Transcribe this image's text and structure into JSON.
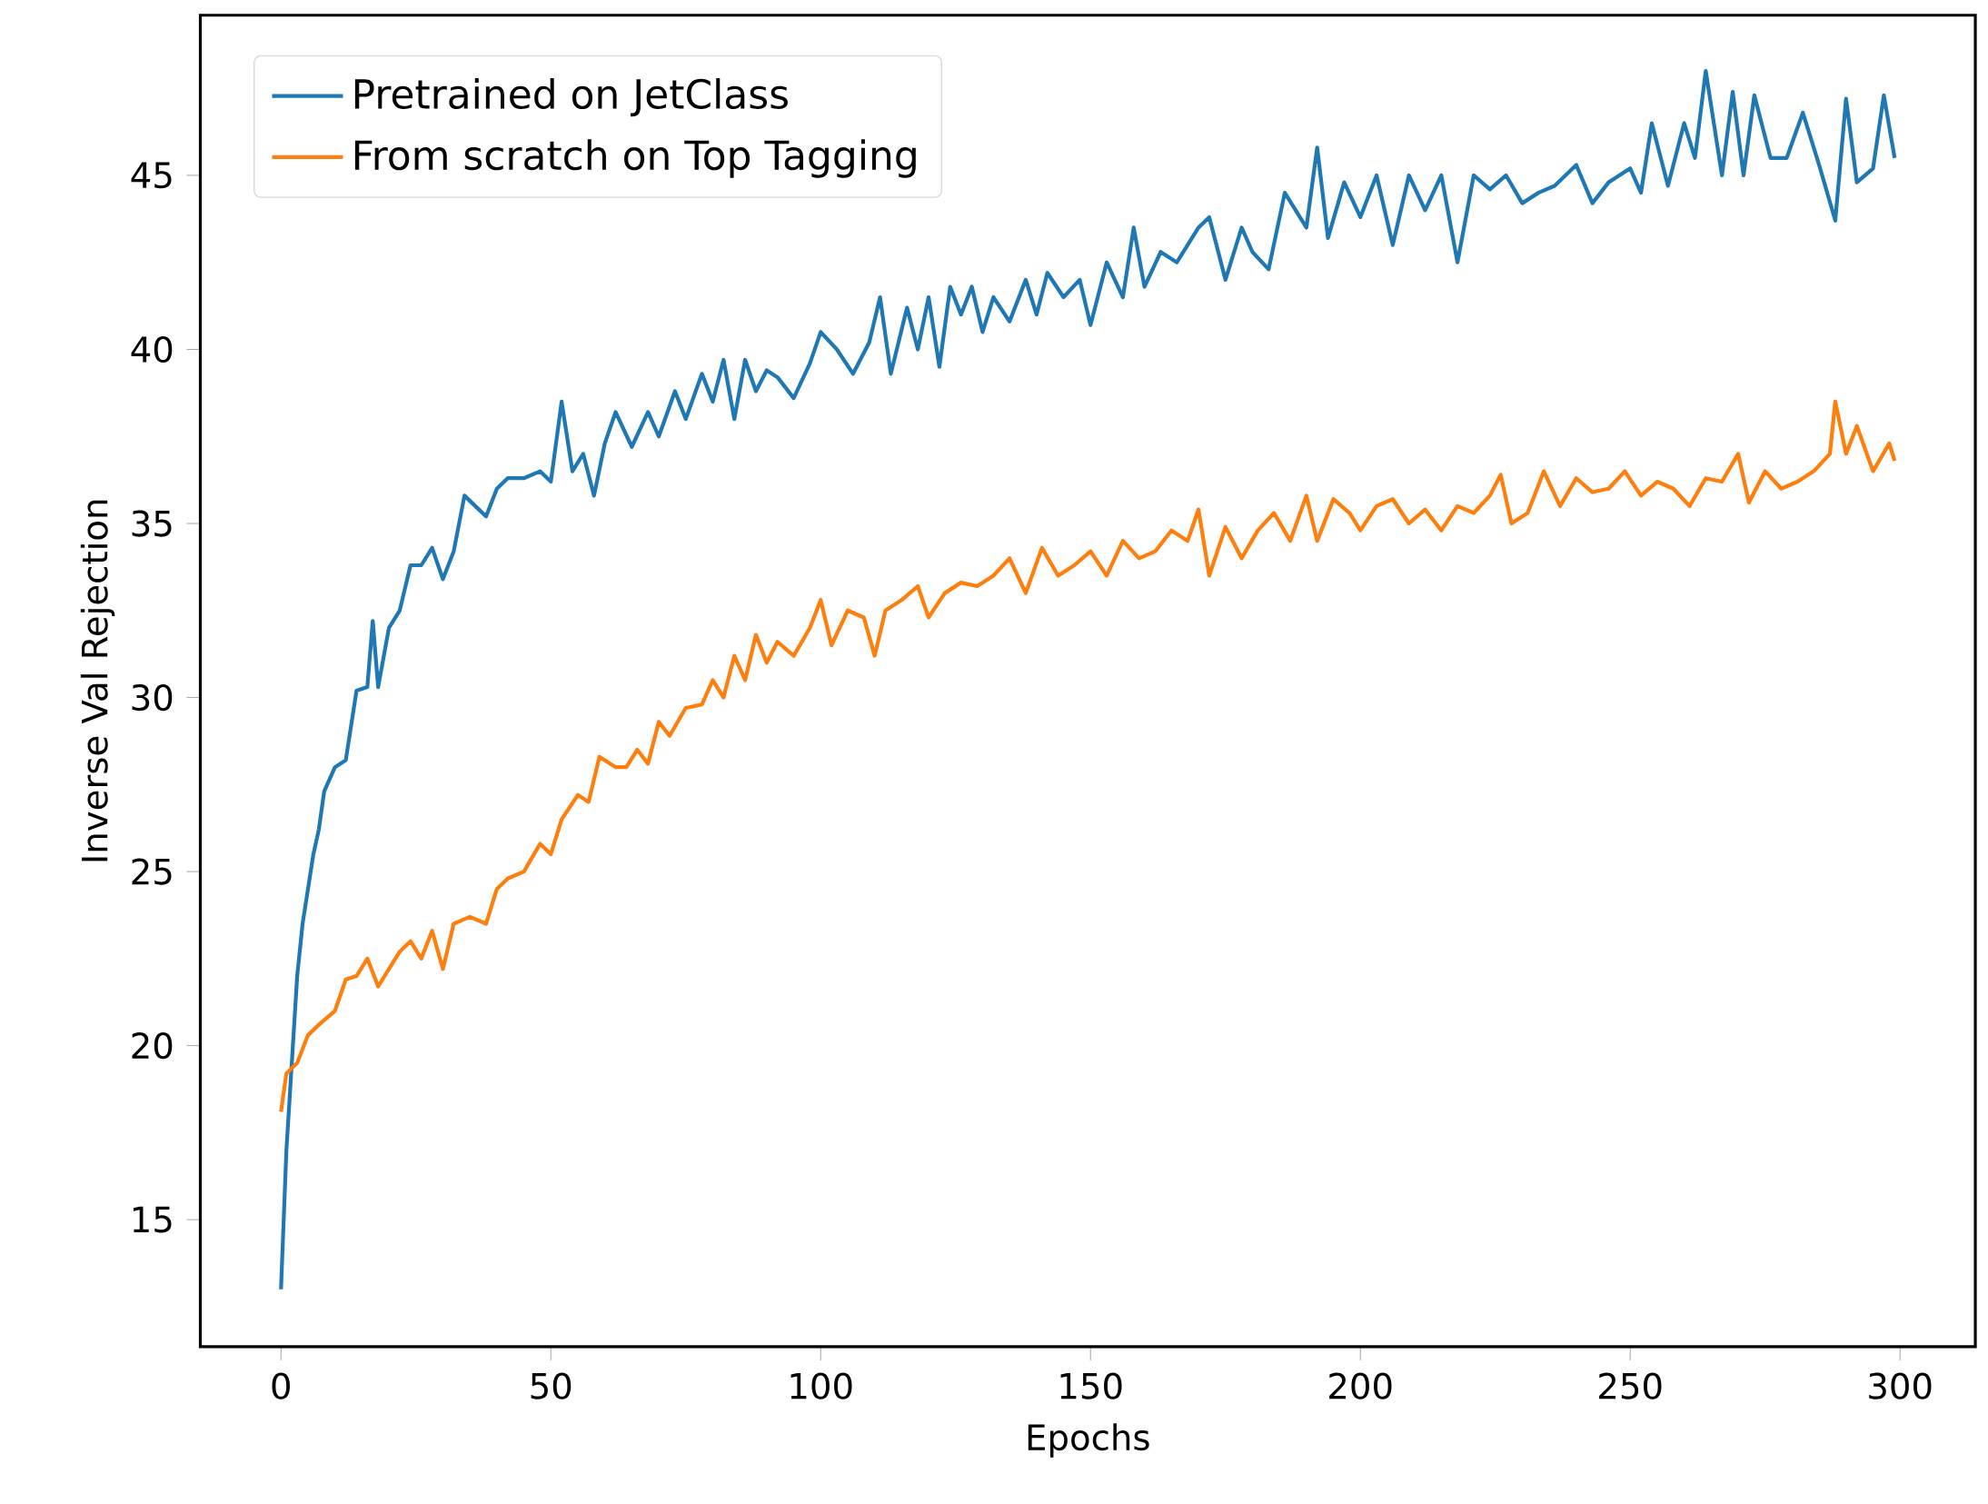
{
  "chart_data": {
    "type": "line",
    "xlabel": "Epochs",
    "ylabel": "Inverse Val Rejection",
    "xlim": [
      -14.95,
      313.95
    ],
    "ylim": [
      11.35,
      49.6
    ],
    "xticks": [
      0,
      50,
      100,
      150,
      200,
      250,
      300
    ],
    "yticks": [
      15,
      20,
      25,
      30,
      35,
      40,
      45
    ],
    "grid": false,
    "legend": "top left",
    "marker": "none",
    "line_style": "solid",
    "series": [
      {
        "name": "Pretrained on JetClass",
        "color": "#1f77b4",
        "x": [
          0,
          1,
          2,
          3,
          4,
          5,
          6,
          7,
          8,
          10,
          12,
          14,
          16,
          17,
          18,
          20,
          22,
          24,
          26,
          28,
          30,
          32,
          34,
          36,
          38,
          40,
          42,
          45,
          48,
          50,
          52,
          54,
          56,
          58,
          60,
          62,
          65,
          68,
          70,
          73,
          75,
          78,
          80,
          82,
          84,
          86,
          88,
          90,
          92,
          95,
          98,
          100,
          103,
          106,
          109,
          111,
          113,
          116,
          118,
          120,
          122,
          124,
          126,
          128,
          130,
          132,
          135,
          138,
          140,
          142,
          145,
          148,
          150,
          153,
          156,
          158,
          160,
          163,
          166,
          170,
          172,
          175,
          178,
          180,
          183,
          186,
          190,
          192,
          194,
          197,
          200,
          203,
          206,
          209,
          212,
          215,
          218,
          221,
          224,
          227,
          230,
          233,
          236,
          240,
          243,
          246,
          250,
          252,
          254,
          257,
          260,
          262,
          264,
          267,
          269,
          271,
          273,
          276,
          279,
          282,
          285,
          288,
          290,
          292,
          295,
          297,
          299
        ],
        "values": [
          13,
          17,
          19.5,
          22,
          23.5,
          24.5,
          25.5,
          26.2,
          27.3,
          28,
          28.2,
          30.2,
          30.3,
          32.2,
          30.3,
          32,
          32.5,
          33.8,
          33.8,
          34.3,
          33.4,
          34.2,
          35.8,
          35.5,
          35.2,
          36,
          36.3,
          36.3,
          36.5,
          36.2,
          38.5,
          36.5,
          37,
          35.8,
          37.3,
          38.2,
          37.2,
          38.2,
          37.5,
          38.8,
          38,
          39.3,
          38.5,
          39.7,
          38,
          39.7,
          38.8,
          39.4,
          39.2,
          38.6,
          39.6,
          40.5,
          40,
          39.3,
          40.2,
          41.5,
          39.3,
          41.2,
          40,
          41.5,
          39.5,
          41.8,
          41,
          41.8,
          40.5,
          41.5,
          40.8,
          42,
          41,
          42.2,
          41.5,
          42,
          40.7,
          42.5,
          41.5,
          43.5,
          41.8,
          42.8,
          42.5,
          43.5,
          43.8,
          42,
          43.5,
          42.8,
          42.3,
          44.5,
          43.5,
          45.8,
          43.2,
          44.8,
          43.8,
          45,
          43,
          45,
          44,
          45,
          42.5,
          45,
          44.6,
          45,
          44.2,
          44.5,
          44.7,
          45.3,
          44.2,
          44.8,
          45.2,
          44.5,
          46.5,
          44.7,
          46.5,
          45.5,
          48,
          45,
          47.4,
          45,
          47.3,
          45.5,
          45.5,
          46.8,
          45.3,
          43.7,
          47.2,
          44.8,
          45.2,
          47.3,
          45.5
        ]
      },
      {
        "name": "From scratch on Top Tagging",
        "color": "#ff7f0e",
        "x": [
          0,
          1,
          3,
          5,
          7,
          10,
          12,
          14,
          16,
          18,
          20,
          22,
          24,
          26,
          28,
          30,
          32,
          35,
          38,
          40,
          42,
          45,
          48,
          50,
          52,
          55,
          57,
          59,
          62,
          64,
          66,
          68,
          70,
          72,
          75,
          78,
          80,
          82,
          84,
          86,
          88,
          90,
          92,
          95,
          98,
          100,
          102,
          105,
          108,
          110,
          112,
          115,
          118,
          120,
          123,
          126,
          129,
          132,
          135,
          138,
          141,
          144,
          147,
          150,
          153,
          156,
          159,
          162,
          165,
          168,
          170,
          172,
          175,
          178,
          181,
          184,
          187,
          190,
          192,
          195,
          198,
          200,
          203,
          206,
          209,
          212,
          215,
          218,
          221,
          224,
          226,
          228,
          231,
          234,
          237,
          240,
          243,
          246,
          249,
          252,
          255,
          258,
          261,
          264,
          267,
          270,
          272,
          275,
          278,
          281,
          284,
          287,
          288,
          290,
          292,
          295,
          298,
          299
        ],
        "values": [
          18.1,
          19.2,
          19.5,
          20.3,
          20.6,
          21,
          21.9,
          22,
          22.5,
          21.7,
          22.2,
          22.7,
          23,
          22.5,
          23.3,
          22.2,
          23.5,
          23.7,
          23.5,
          24.5,
          24.8,
          25,
          25.8,
          25.5,
          26.5,
          27.2,
          27,
          28.3,
          28,
          28,
          28.5,
          28.1,
          29.3,
          28.9,
          29.7,
          29.8,
          30.5,
          30,
          31.2,
          30.5,
          31.8,
          31,
          31.6,
          31.2,
          32,
          32.8,
          31.5,
          32.5,
          32.3,
          31.2,
          32.5,
          32.8,
          33.2,
          32.3,
          33,
          33.3,
          33.2,
          33.5,
          34,
          33,
          34.3,
          33.5,
          33.8,
          34.2,
          33.5,
          34.5,
          34,
          34.2,
          34.8,
          34.5,
          35.4,
          33.5,
          34.9,
          34,
          34.8,
          35.3,
          34.5,
          35.8,
          34.5,
          35.7,
          35.3,
          34.8,
          35.5,
          35.7,
          35,
          35.4,
          34.8,
          35.5,
          35.3,
          35.8,
          36.4,
          35,
          35.3,
          36.5,
          35.5,
          36.3,
          35.9,
          36,
          36.5,
          35.8,
          36.2,
          36,
          35.5,
          36.3,
          36.2,
          37,
          35.6,
          36.5,
          36,
          36.2,
          36.5,
          37,
          38.5,
          37,
          37.8,
          36.5,
          37.3,
          36.8
        ]
      }
    ]
  }
}
